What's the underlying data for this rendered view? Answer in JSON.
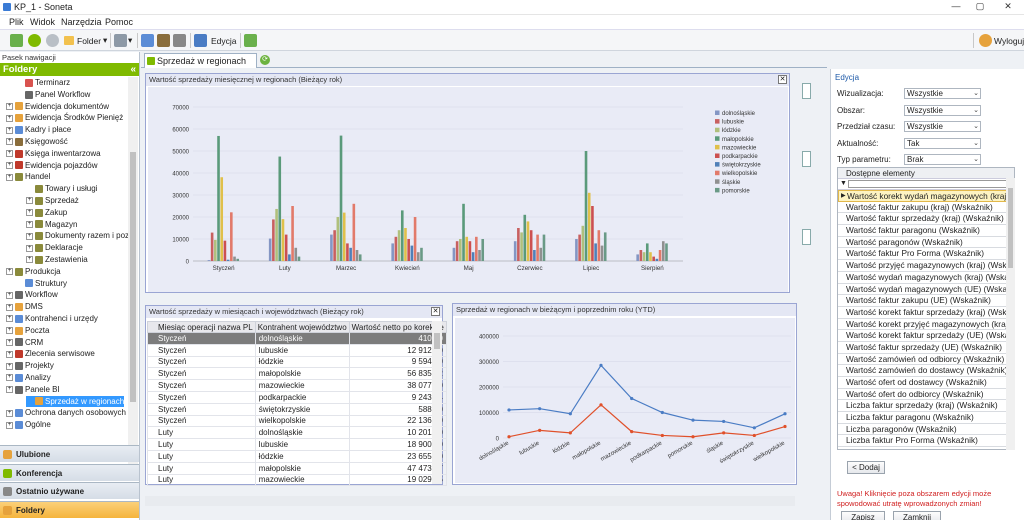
{
  "window": {
    "title": "KP_1 - Soneta",
    "minimize": "—",
    "maximize": "▢",
    "close": "✕"
  },
  "menu": [
    "Plik",
    "Widok",
    "Narzędzia",
    "Pomoc"
  ],
  "toolbar": {
    "folder_label": "Folder",
    "edit_label": "Edycja",
    "logout_label": "Wyloguj"
  },
  "nav": {
    "pane_title": "Pasek nawigacji",
    "folders_header": "Foldery",
    "tree": [
      {
        "label": "Terminarz",
        "indent": 1,
        "exp": false,
        "color": "#d9534f"
      },
      {
        "label": "Panel Workflow",
        "indent": 1,
        "exp": false,
        "color": "#666666"
      },
      {
        "label": "Ewidencja dokumentów",
        "indent": 0,
        "exp": true,
        "color": "#e6a23c"
      },
      {
        "label": "Ewidencja Środków Pienięż",
        "indent": 0,
        "exp": true,
        "color": "#e6a23c"
      },
      {
        "label": "Kadry i płace",
        "indent": 0,
        "exp": true,
        "color": "#5b8cd6"
      },
      {
        "label": "Księgowość",
        "indent": 0,
        "exp": true,
        "color": "#8a6d3b"
      },
      {
        "label": "Księga inwentarzowa",
        "indent": 0,
        "exp": true,
        "color": "#c0392b"
      },
      {
        "label": "Ewidencja pojazdów",
        "indent": 0,
        "exp": true,
        "color": "#c0392b"
      },
      {
        "label": "Handel",
        "indent": 0,
        "exp": true,
        "color": "#8a8a3b"
      },
      {
        "label": "Towary i usługi",
        "indent": 2,
        "exp": false,
        "color": "#8a8a3b"
      },
      {
        "label": "Sprzedaż",
        "indent": 2,
        "exp": true,
        "color": "#8a8a3b"
      },
      {
        "label": "Zakup",
        "indent": 2,
        "exp": true,
        "color": "#8a8a3b"
      },
      {
        "label": "Magazyn",
        "indent": 2,
        "exp": true,
        "color": "#8a8a3b"
      },
      {
        "label": "Dokumenty razem i pozo",
        "indent": 2,
        "exp": true,
        "color": "#8a8a3b"
      },
      {
        "label": "Deklaracje",
        "indent": 2,
        "exp": true,
        "color": "#8a8a3b"
      },
      {
        "label": "Zestawienia",
        "indent": 2,
        "exp": true,
        "color": "#8a8a3b"
      },
      {
        "label": "Produkcja",
        "indent": 0,
        "exp": true,
        "color": "#8a8a3b"
      },
      {
        "label": "Struktury",
        "indent": 1,
        "exp": false,
        "color": "#5b8cd6"
      },
      {
        "label": "Workflow",
        "indent": 0,
        "exp": true,
        "color": "#666666"
      },
      {
        "label": "DMS",
        "indent": 0,
        "exp": true,
        "color": "#e6a23c"
      },
      {
        "label": "Kontrahenci i urzędy",
        "indent": 0,
        "exp": true,
        "color": "#5b8cd6"
      },
      {
        "label": "Poczta",
        "indent": 0,
        "exp": true,
        "color": "#e6a23c"
      },
      {
        "label": "CRM",
        "indent": 0,
        "exp": true,
        "color": "#666666"
      },
      {
        "label": "Zlecenia serwisowe",
        "indent": 0,
        "exp": true,
        "color": "#c0392b"
      },
      {
        "label": "Projekty",
        "indent": 0,
        "exp": true,
        "color": "#666666"
      },
      {
        "label": "Analizy",
        "indent": 0,
        "exp": true,
        "color": "#5b8cd6"
      },
      {
        "label": "Panele BI",
        "indent": 0,
        "exp": true,
        "color": "#666666"
      },
      {
        "label": "Sprzedaż w regionach",
        "indent": 2,
        "exp": false,
        "color": "#e6a23c",
        "selected": true
      },
      {
        "label": "Ochrona danych osobowych",
        "indent": 0,
        "exp": true,
        "color": "#5b8cd6"
      },
      {
        "label": "Ogólne",
        "indent": 0,
        "exp": true,
        "color": "#5b8cd6"
      }
    ],
    "buttons": [
      {
        "label": "Ulubione",
        "color": "#e6a23c"
      },
      {
        "label": "Konferencja",
        "color": "#7fba00"
      },
      {
        "label": "Ostatnio używane",
        "color": "#888888"
      },
      {
        "label": "Foldery",
        "color": "#e6a23c"
      }
    ]
  },
  "tab": {
    "label": "Sprzedaż w regionach"
  },
  "bar_panel": {
    "title": "Wartość sprzedaży miesięcznej w regionach (Bieżący rok)"
  },
  "table_panel": {
    "title": "Wartość sprzedaży w miesiącach i województwach (Bieżący rok)",
    "columns": [
      "Miesiąc operacji nazwa PL",
      "Kontrahent województwo",
      "Wartość netto po korekcie"
    ],
    "rows": [
      [
        "Styczeń",
        "dolnośląskie",
        "410,00"
      ],
      [
        "Styczeń",
        "lubuskie",
        "12 912,00"
      ],
      [
        "Styczeń",
        "łódzkie",
        "9 594,60"
      ],
      [
        "Styczeń",
        "małopolskie",
        "56 835,92"
      ],
      [
        "Styczeń",
        "mazowieckie",
        "38 077,80"
      ],
      [
        "Styczeń",
        "podkarpackie",
        "9 243,24"
      ],
      [
        "Styczeń",
        "świętokrzyskie",
        "588,00"
      ],
      [
        "Styczeń",
        "wielkopolskie",
        "22 136,00"
      ],
      [
        "Luty",
        "dolnośląskie",
        "10 201,60"
      ],
      [
        "Luty",
        "lubuskie",
        "18 900,50"
      ],
      [
        "Luty",
        "łódzkie",
        "23 655,00"
      ],
      [
        "Luty",
        "małopolskie",
        "47 473,07"
      ],
      [
        "Luty",
        "mazowieckie",
        "19 029,25"
      ]
    ]
  },
  "line_panel": {
    "title": "Sprzedaż w regionach w bieżącym i poprzednim roku (YTD)"
  },
  "edit_panel": {
    "title": "Edycja",
    "fields": [
      {
        "label": "Wizualizacja:",
        "value": "Wszystkie"
      },
      {
        "label": "Obszar:",
        "value": "Wszystkie"
      },
      {
        "label": "Przedział czasu:",
        "value": "Wszystkie"
      },
      {
        "label": "Aktualność:",
        "value": "Tak"
      },
      {
        "label": "Typ parametru:",
        "value": "Brak"
      }
    ],
    "available_header": "Dostępne elementy",
    "available": [
      "Wartość korekt wydań magazynowych (kraj)",
      "Wartość faktur zakupu (kraj) (Wskaźnik)",
      "Wartość faktur sprzedaży (kraj) (Wskaźnik)",
      "Wartość faktur paragonu (Wskaźnik)",
      "Wartość paragonów (Wskaźnik)",
      "Wartość faktur Pro Forma (Wskaźnik)",
      "Wartość przyjęć magazynowych (kraj) (Wskaźnik)",
      "Wartość wydań magazynowych (kraj) (Wskaźnik)",
      "Wartość wydań magazynowych (UE) (Wskaźnik)",
      "Wartość faktur zakupu (UE) (Wskaźnik)",
      "Wartość korekt faktur sprzedaży (kraj) (Wskaźnik)",
      "Wartość korekt przyjęć magazynowych (kraj) (Wskaźnik)",
      "Wartość korekt faktur sprzedaży (UE) (Wskaźnik)",
      "Wartość faktur sprzedaży (UE) (Wskaźnik)",
      "Wartość zamówień od odbiorcy (Wskaźnik)",
      "Wartość zamówień do dostawcy (Wskaźnik)",
      "Wartość ofert od dostawcy (Wskaźnik)",
      "Wartość ofert do odbiorcy (Wskaźnik)",
      "Liczba faktur sprzedaży (kraj) (Wskaźnik)",
      "Liczba faktur paragonu (Wskaźnik)",
      "Liczba paragonów (Wskaźnik)",
      "Liczba faktur Pro Forma (Wskaźnik)"
    ],
    "add_button": "< Dodaj",
    "warning": "Uwaga! Kliknięcie poza obszarem edycji może spowodować utratę wprowadzonych zmian!",
    "save_button": "Zapisz",
    "close_button": "Zamknij"
  },
  "colors": {
    "green": "#7fba00",
    "accent": "#3399ff",
    "series_current": "#4a7cc4",
    "series_previous": "#e0502a"
  },
  "chart_data": [
    {
      "type": "bar",
      "categories": [
        "Styczeń",
        "Luty",
        "Marzec",
        "Kwiecień",
        "Maj",
        "Czerwiec",
        "Lipiec",
        "Sierpień"
      ],
      "ylim": [
        0,
        70000
      ],
      "yticks": [
        "0",
        "10000",
        "20000",
        "30000",
        "40000",
        "50000",
        "60000",
        "70000"
      ],
      "legend_position": "right",
      "series": [
        {
          "name": "dolnośląskie",
          "color": "#8496c4",
          "values": [
            410,
            10202,
            12000,
            8000,
            6000,
            9000,
            10000,
            3000
          ]
        },
        {
          "name": "lubuskie",
          "color": "#c86060",
          "values": [
            12912,
            18901,
            14000,
            11000,
            9000,
            15000,
            12000,
            5000
          ]
        },
        {
          "name": "łódzkie",
          "color": "#b0c07c",
          "values": [
            9595,
            23655,
            20000,
            14000,
            10000,
            13000,
            16000,
            4000
          ]
        },
        {
          "name": "małopolskie",
          "color": "#5a9a7a",
          "values": [
            56836,
            47473,
            57000,
            23000,
            26000,
            21000,
            50000,
            8000
          ]
        },
        {
          "name": "mazowieckie",
          "color": "#e0c04a",
          "values": [
            38078,
            19029,
            22000,
            15000,
            11000,
            18000,
            31000,
            4000
          ]
        },
        {
          "name": "podkarpackie",
          "color": "#cc5050",
          "values": [
            9243,
            12000,
            8000,
            10000,
            9000,
            14000,
            25000,
            2000
          ]
        },
        {
          "name": "świętokrzyskie",
          "color": "#5080b8",
          "values": [
            588,
            3000,
            6000,
            7000,
            4000,
            5000,
            8000,
            1000
          ]
        },
        {
          "name": "wielkopolskie",
          "color": "#e27a6a",
          "values": [
            22136,
            25000,
            26000,
            20000,
            11000,
            12000,
            14000,
            5000
          ]
        },
        {
          "name": "śląskie",
          "color": "#909090",
          "values": [
            2000,
            6000,
            5000,
            4000,
            5000,
            6000,
            7000,
            9000
          ]
        },
        {
          "name": "pomorskie",
          "color": "#6a9a86",
          "values": [
            1000,
            2000,
            3000,
            6000,
            10000,
            12000,
            13000,
            8000
          ]
        }
      ]
    },
    {
      "type": "line",
      "categories": [
        "dolnośląskie",
        "lubuskie",
        "łódzkie",
        "małopolskie",
        "mazowieckie",
        "podkarpackie",
        "pomorskie",
        "śląskie",
        "świętokrzyskie",
        "wielkopolskie"
      ],
      "ylim": [
        0,
        400000
      ],
      "yticks": [
        "0",
        "100000",
        "200000",
        "300000",
        "400000"
      ],
      "series": [
        {
          "color": "#4a7cc4",
          "values": [
            110000,
            115000,
            95000,
            285000,
            155000,
            100000,
            70000,
            65000,
            40000,
            95000
          ]
        },
        {
          "color": "#e0502a",
          "values": [
            5000,
            30000,
            20000,
            130000,
            25000,
            10000,
            5000,
            20000,
            10000,
            45000
          ]
        }
      ]
    }
  ]
}
